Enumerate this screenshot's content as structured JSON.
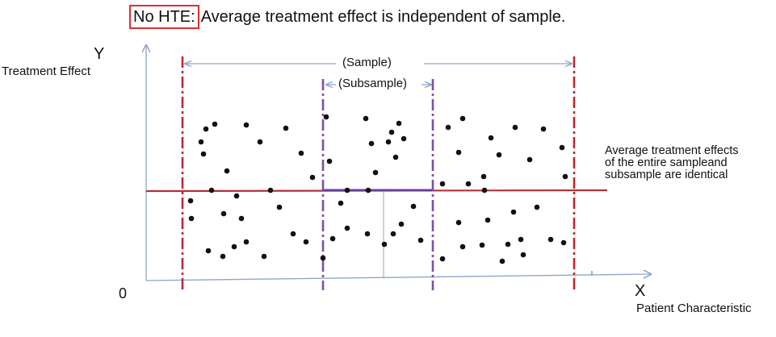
{
  "title": {
    "highlight": "No HTE:",
    "text": "Average treatment effect is independent of sample."
  },
  "axes": {
    "y_letter": "Y",
    "y_label": "Treatment Effect",
    "x_letter": "X",
    "x_label": "Patient Characteristic",
    "origin_label": "0"
  },
  "brackets": {
    "sample_label": "(Sample)",
    "subsample_label": "(Subsample)"
  },
  "annotation": {
    "lines": [
      "Average treatment effects",
      "of the entire sampleand",
      "subsample are identical"
    ]
  },
  "colors": {
    "axis": "#8aa8cc",
    "sample_boundary": "#c0272d",
    "subsample_boundary": "#7b4fa6",
    "average_line": "#b1323a",
    "subsample_average_line": "#6a3d9a",
    "highlight_box": "#d9302e",
    "points": "#111111"
  },
  "chart_data": {
    "type": "scatter",
    "description_visible": false,
    "reference_lines": {
      "average_effect": "horizontal line across the entire sample",
      "subsample_average_effect": "horizontal line across the subsample, overlapping the sample average"
    }
  }
}
